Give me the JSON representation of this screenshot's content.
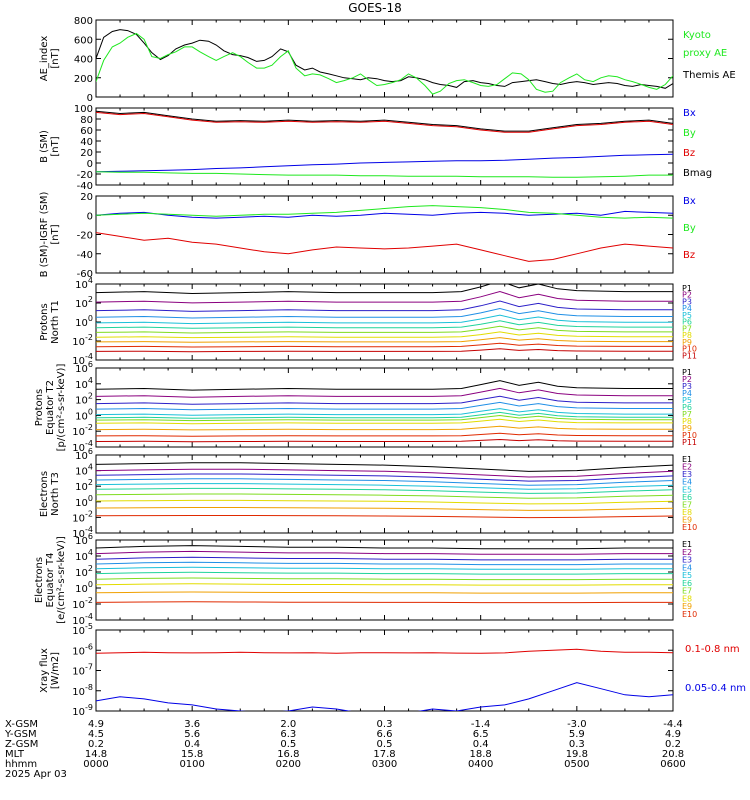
{
  "title": "GOES-18",
  "colors": {
    "black": "#000000",
    "green": "#1fe81f",
    "blue": "#0000e6",
    "red": "#e00000",
    "P": [
      "#000000",
      "#8a007f",
      "#2b1fc8",
      "#1f8fe6",
      "#19c0d8",
      "#1fd39a",
      "#7fdc1f",
      "#e2dc00",
      "#f0a000",
      "#e02a00",
      "#c40000",
      "#8e0000"
    ],
    "E": [
      "#000000",
      "#8a007f",
      "#2b1fc8",
      "#1f8fe6",
      "#19c0d8",
      "#1fd39a",
      "#7fdc1f",
      "#e2dc00",
      "#f0a000",
      "#e02a00",
      "#8e0000"
    ]
  },
  "chart_data": [
    {
      "type": "line",
      "id": "ae",
      "ylabel": [
        "AE_index",
        "[nT]"
      ],
      "ylim": [
        0,
        800
      ],
      "yticks": [
        "0",
        "200",
        "400",
        "600",
        "800"
      ],
      "legend": [
        {
          "text": "Kyoto",
          "color": "green"
        },
        {
          "text": "proxy AE",
          "color": "green"
        },
        {
          "text": "Themis AE",
          "color": "black"
        }
      ],
      "x_hours": [
        0,
        0.08,
        0.17,
        0.25,
        0.33,
        0.42,
        0.5,
        0.58,
        0.67,
        0.75,
        0.83,
        0.92,
        1.0,
        1.08,
        1.17,
        1.25,
        1.33,
        1.42,
        1.5,
        1.58,
        1.67,
        1.75,
        1.83,
        1.92,
        2.0,
        2.08,
        2.17,
        2.25,
        2.33,
        2.42,
        2.5,
        2.58,
        2.67,
        2.75,
        2.83,
        2.92,
        3.0,
        3.08,
        3.17,
        3.25,
        3.33,
        3.42,
        3.5,
        3.58,
        3.67,
        3.75,
        3.83,
        3.92,
        4.0,
        4.08,
        4.17,
        4.25,
        4.33,
        4.42,
        4.5,
        4.58,
        4.67,
        4.75,
        4.83,
        4.92,
        5.0,
        5.08,
        5.17,
        5.25,
        5.33,
        5.42,
        5.5,
        5.58,
        5.67,
        5.75,
        5.83,
        5.92,
        6.0
      ],
      "series": [
        {
          "name": "Themis AE",
          "color": "black",
          "values": [
            400,
            620,
            680,
            700,
            690,
            650,
            560,
            460,
            390,
            430,
            500,
            540,
            560,
            590,
            580,
            540,
            480,
            440,
            430,
            410,
            370,
            380,
            420,
            500,
            470,
            330,
            280,
            300,
            260,
            240,
            220,
            200,
            190,
            180,
            200,
            190,
            170,
            160,
            170,
            210,
            200,
            180,
            150,
            130,
            120,
            100,
            160,
            170,
            150,
            140,
            120,
            110,
            150,
            160,
            170,
            180,
            160,
            140,
            130,
            150,
            160,
            150,
            130,
            140,
            150,
            140,
            120,
            110,
            130,
            120,
            110,
            90,
            140
          ]
        },
        {
          "name": "Kyoto proxy AE",
          "color": "green",
          "values": [
            160,
            380,
            520,
            560,
            620,
            660,
            600,
            420,
            400,
            440,
            470,
            520,
            520,
            470,
            420,
            380,
            420,
            460,
            420,
            360,
            300,
            300,
            330,
            420,
            480,
            300,
            220,
            240,
            230,
            190,
            150,
            170,
            200,
            240,
            180,
            120,
            130,
            150,
            180,
            240,
            200,
            120,
            30,
            60,
            140,
            170,
            180,
            150,
            120,
            110,
            130,
            190,
            250,
            240,
            180,
            80,
            50,
            60,
            150,
            200,
            240,
            180,
            160,
            200,
            220,
            210,
            180,
            160,
            130,
            100,
            80,
            130,
            220
          ]
        }
      ]
    },
    {
      "type": "line",
      "id": "bsm",
      "ylabel": [
        "B (SM)",
        "[nT]"
      ],
      "ylim": [
        -40,
        100
      ],
      "yticks": [
        "-40",
        "-20",
        "0",
        "20",
        "40",
        "60",
        "80",
        "100"
      ],
      "legend": [
        {
          "text": "Bx",
          "color": "blue"
        },
        {
          "text": "By",
          "color": "green"
        },
        {
          "text": "Bz",
          "color": "red"
        },
        {
          "text": "Bmag",
          "color": "black"
        }
      ],
      "x_hours": [
        0,
        0.25,
        0.5,
        0.75,
        1.0,
        1.25,
        1.5,
        1.75,
        2.0,
        2.25,
        2.5,
        2.75,
        3.0,
        3.25,
        3.5,
        3.75,
        4.0,
        4.25,
        4.5,
        4.75,
        5.0,
        5.25,
        5.5,
        5.75,
        6.0
      ],
      "series": [
        {
          "name": "Bmag",
          "color": "black",
          "values": [
            94,
            90,
            92,
            86,
            80,
            76,
            77,
            76,
            78,
            76,
            77,
            76,
            78,
            74,
            70,
            68,
            62,
            58,
            58,
            64,
            70,
            72,
            76,
            78,
            72
          ]
        },
        {
          "name": "Bz",
          "color": "red",
          "values": [
            92,
            88,
            90,
            84,
            78,
            74,
            75,
            74,
            76,
            74,
            75,
            74,
            76,
            72,
            68,
            66,
            60,
            56,
            56,
            62,
            68,
            70,
            74,
            76,
            70
          ]
        },
        {
          "name": "Bx",
          "color": "blue",
          "values": [
            -16,
            -15,
            -14,
            -13,
            -12,
            -10,
            -9,
            -7,
            -5,
            -3,
            -2,
            0,
            1,
            2,
            3,
            4,
            4,
            5,
            7,
            9,
            10,
            12,
            14,
            15,
            16
          ]
        },
        {
          "name": "By",
          "color": "green",
          "values": [
            -16,
            -17,
            -17,
            -18,
            -19,
            -19,
            -20,
            -21,
            -22,
            -22,
            -22,
            -23,
            -23,
            -24,
            -24,
            -24,
            -25,
            -25,
            -25,
            -26,
            -26,
            -25,
            -24,
            -22,
            -22
          ]
        }
      ]
    },
    {
      "type": "line",
      "id": "bigrf",
      "ylabel": [
        "B (SM)-IGRF (SM)",
        "[nT]"
      ],
      "ylim": [
        -60,
        20
      ],
      "yticks": [
        "-60",
        "-40",
        "-20",
        "0",
        "20"
      ],
      "legend": [
        {
          "text": "Bx",
          "color": "blue"
        },
        {
          "text": "By",
          "color": "green"
        },
        {
          "text": "Bz",
          "color": "red"
        }
      ],
      "x_hours": [
        0,
        0.25,
        0.5,
        0.75,
        1.0,
        1.25,
        1.5,
        1.75,
        2.0,
        2.25,
        2.5,
        2.75,
        3.0,
        3.25,
        3.5,
        3.75,
        4.0,
        4.25,
        4.5,
        4.75,
        5.0,
        5.25,
        5.5,
        5.75,
        6.0
      ],
      "series": [
        {
          "name": "Bx",
          "color": "blue",
          "values": [
            0,
            2,
            3,
            0,
            -2,
            -3,
            -2,
            -1,
            -2,
            0,
            -1,
            0,
            2,
            1,
            0,
            2,
            3,
            2,
            0,
            1,
            2,
            0,
            4,
            3,
            2
          ]
        },
        {
          "name": "By",
          "color": "green",
          "values": [
            0,
            1,
            2,
            1,
            0,
            -1,
            0,
            1,
            1,
            2,
            3,
            5,
            7,
            9,
            10,
            9,
            8,
            6,
            3,
            2,
            0,
            -2,
            -3,
            -2,
            -3
          ]
        },
        {
          "name": "Bz",
          "color": "red",
          "values": [
            -18,
            -22,
            -26,
            -24,
            -28,
            -30,
            -34,
            -38,
            -40,
            -36,
            -33,
            -34,
            -35,
            -34,
            -32,
            -30,
            -36,
            -42,
            -48,
            -46,
            -40,
            -34,
            -30,
            -32,
            -34
          ]
        }
      ]
    },
    {
      "type": "line",
      "id": "pnorth",
      "log": true,
      "ylabel": [
        "Protons",
        "North T1"
      ],
      "ylim_exp": [
        -4,
        4
      ],
      "yticks_exp": [
        -4,
        -2,
        0,
        2,
        4
      ],
      "labels": [
        "P1",
        "P2",
        "P3",
        "P4",
        "P5",
        "P6",
        "P7",
        "P8",
        "P9",
        "P10",
        "P11"
      ],
      "base_exp": [
        3.1,
        2.1,
        1.2,
        0.5,
        -0.1,
        -0.6,
        -1.1,
        -1.6,
        -2.1,
        -2.6,
        -3.1
      ],
      "x_hours": [
        0,
        0.5,
        1.0,
        1.5,
        2.0,
        2.5,
        3.0,
        3.5,
        3.8,
        4.0,
        4.2,
        4.4,
        4.6,
        4.8,
        5.0,
        5.5,
        6.0
      ],
      "profile": [
        0,
        0.1,
        -0.1,
        0,
        0.1,
        0,
        0,
        0,
        0.1,
        0.6,
        1.2,
        0.5,
        0.9,
        0.4,
        0.2,
        0.1,
        0.1
      ]
    },
    {
      "type": "line",
      "id": "pequator",
      "log": true,
      "ylabel": [
        "Protons",
        "Equator T2",
        "[p/(cm²-s-sr-keV)]"
      ],
      "ylim_exp": [
        -4,
        6
      ],
      "yticks_exp": [
        -4,
        -2,
        0,
        2,
        4,
        6
      ],
      "labels": [
        "P1",
        "P2",
        "P3",
        "P4",
        "P5",
        "P6",
        "P7",
        "P8",
        "P9",
        "P10",
        "P11"
      ],
      "base_exp": [
        3.3,
        2.4,
        1.5,
        0.8,
        0.1,
        -0.3,
        -0.6,
        -1.0,
        -1.8,
        -2.6,
        -3.3
      ],
      "x_hours": [
        0,
        0.5,
        1.0,
        1.5,
        2.0,
        2.5,
        3.0,
        3.5,
        3.8,
        4.0,
        4.2,
        4.4,
        4.6,
        4.8,
        5.0,
        5.5,
        6.0
      ],
      "profile": [
        0,
        0.1,
        -0.1,
        0,
        0.1,
        0,
        0,
        0,
        0.1,
        0.6,
        1.1,
        0.5,
        0.9,
        0.4,
        0.2,
        0.1,
        0.1
      ]
    },
    {
      "type": "line",
      "id": "enorth",
      "log": true,
      "ylabel": [
        "Electrons",
        "North T3"
      ],
      "ylim_exp": [
        -4,
        6
      ],
      "yticks_exp": [
        -4,
        -2,
        0,
        2,
        4,
        6
      ],
      "labels": [
        "E1",
        "E2",
        "E3",
        "E4",
        "E5",
        "E6",
        "E7",
        "E8",
        "E9",
        "E10"
      ],
      "base_exp": [
        4.8,
        4.0,
        3.4,
        2.8,
        2.2,
        1.6,
        0.9,
        0.1,
        -0.8,
        -1.8
      ],
      "x_hours": [
        0,
        0.5,
        1.0,
        1.5,
        2.0,
        2.5,
        3.0,
        3.5,
        4.0,
        4.5,
        5.0,
        5.5,
        6.0
      ],
      "profile": [
        0,
        0.1,
        0.2,
        0.2,
        0.1,
        0,
        -0.1,
        -0.3,
        -0.6,
        -0.9,
        -0.8,
        -0.4,
        -0.1
      ]
    },
    {
      "type": "line",
      "id": "eequator",
      "log": true,
      "ylabel": [
        "Electrons",
        "Equator T4",
        "[e/(cm²-s-sr-keV)]"
      ],
      "ylim_exp": [
        -4,
        6
      ],
      "yticks_exp": [
        -4,
        -2,
        0,
        2,
        4,
        6
      ],
      "labels": [
        "E1",
        "E2",
        "E3",
        "E4",
        "E5",
        "E6",
        "E7",
        "E8",
        "E9",
        "E10"
      ],
      "base_exp": [
        5.0,
        4.3,
        3.6,
        3.0,
        2.4,
        1.8,
        1.1,
        0.4,
        -0.6,
        -1.8
      ],
      "x_hours": [
        0,
        0.5,
        1.0,
        1.5,
        2.0,
        2.5,
        3.0,
        3.5,
        4.0,
        4.5,
        5.0,
        5.5,
        6.0
      ],
      "profile": [
        0,
        0.2,
        0.3,
        0.2,
        0.1,
        0.1,
        0,
        0,
        -0.1,
        -0.1,
        -0.1,
        0,
        0
      ]
    },
    {
      "type": "line",
      "id": "xray",
      "log": true,
      "ylabel": [
        "Xray flux",
        "[W/m2]"
      ],
      "ylim_exp": [
        -9,
        -5
      ],
      "yticks_exp": [
        -9,
        -8,
        -7,
        -6,
        -5
      ],
      "legend": [
        {
          "text": "0.1-0.8 nm",
          "color": "red"
        },
        {
          "text": "0.05-0.4 nm",
          "color": "blue"
        }
      ],
      "x_hours": [
        0,
        0.25,
        0.5,
        0.75,
        1.0,
        1.25,
        1.5,
        1.75,
        2.0,
        2.25,
        2.5,
        2.75,
        3.0,
        3.25,
        3.5,
        3.75,
        4.0,
        4.25,
        4.5,
        4.75,
        5.0,
        5.25,
        5.5,
        5.75,
        6.0
      ],
      "series": [
        {
          "name": "0.1-0.8 nm",
          "color": "red",
          "values": [
            -6.15,
            -6.12,
            -6.1,
            -6.12,
            -6.13,
            -6.12,
            -6.1,
            -6.12,
            -6.13,
            -6.12,
            -6.15,
            -6.12,
            -6.12,
            -6.13,
            -6.12,
            -6.14,
            -6.15,
            -6.13,
            -6.05,
            -6.0,
            -5.95,
            -6.05,
            -6.1,
            -6.1,
            -6.12
          ]
        },
        {
          "name": "0.05-0.4 nm",
          "color": "blue",
          "values": [
            -8.5,
            -8.3,
            -8.4,
            -8.6,
            -8.7,
            -8.9,
            -9.0,
            -9.1,
            -9.0,
            -8.8,
            -8.9,
            -9.1,
            -9.2,
            -9.1,
            -8.9,
            -9.0,
            -8.8,
            -8.7,
            -8.4,
            -8.0,
            -7.6,
            -7.9,
            -8.2,
            -8.3,
            -8.2
          ]
        }
      ]
    }
  ],
  "x_axis": {
    "row_labels": [
      "X-GSM",
      "Y-GSM",
      "Z-GSM",
      "MLT",
      "hhmm"
    ],
    "columns": [
      [
        "4.9",
        "4.5",
        "0.2",
        "14.8",
        "0000"
      ],
      [
        "3.6",
        "5.6",
        "0.4",
        "15.8",
        "0100"
      ],
      [
        "2.0",
        "6.3",
        "0.5",
        "16.8",
        "0200"
      ],
      [
        "0.3",
        "6.6",
        "0.5",
        "17.8",
        "0300"
      ],
      [
        "-1.4",
        "6.5",
        "0.4",
        "18.8",
        "0400"
      ],
      [
        "-3.0",
        "5.9",
        "0.3",
        "19.8",
        "0500"
      ],
      [
        "-4.4",
        "4.9",
        "0.2",
        "20.8",
        "0600"
      ]
    ],
    "date": "2025 Apr 03"
  }
}
